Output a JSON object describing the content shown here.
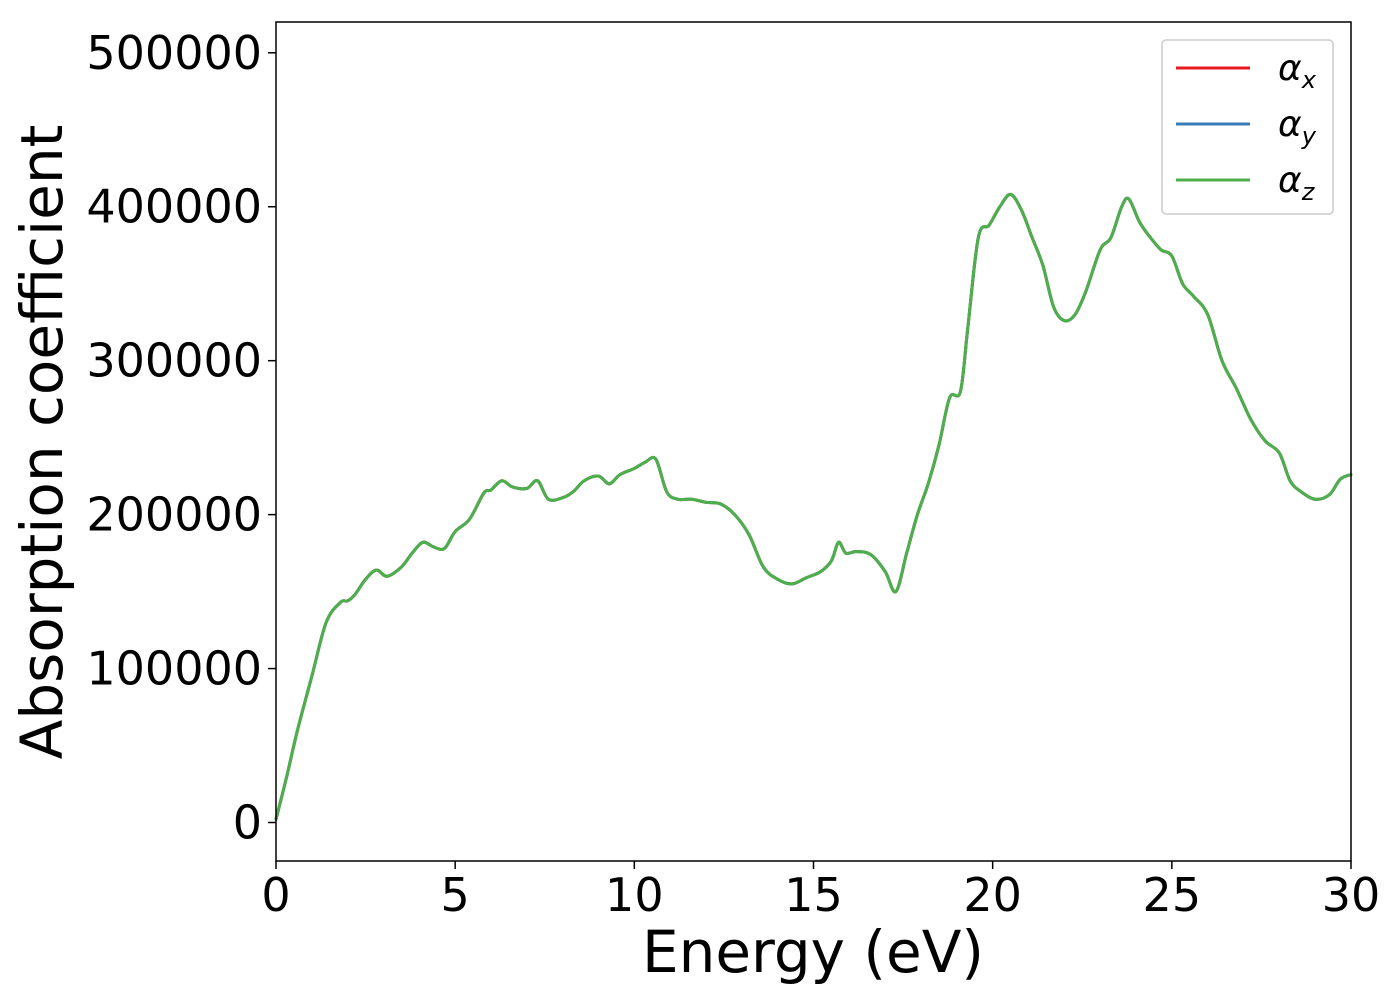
{
  "chart_data": {
    "type": "line",
    "title": "",
    "xlabel": "Energy (eV)",
    "ylabel": "Absorption coefficient",
    "xlim": [
      0,
      30
    ],
    "ylim": [
      -25000,
      520000
    ],
    "xticks": [
      "0",
      "5",
      "10",
      "15",
      "20",
      "25",
      "30"
    ],
    "yticks": [
      "0",
      "100000",
      "200000",
      "300000",
      "400000",
      "500000"
    ],
    "grid": false,
    "legend_position": "top-right",
    "legend": [
      {
        "symbol": "α",
        "sub": "x",
        "color": "#e41a1c"
      },
      {
        "symbol": "α",
        "sub": "y",
        "color": "#377eb8"
      },
      {
        "symbol": "α",
        "sub": "z",
        "color": "#4daf4a"
      }
    ],
    "x": [
      0,
      0.3,
      0.6,
      1.0,
      1.4,
      1.8,
      2.0,
      2.2,
      2.5,
      2.8,
      3.1,
      3.5,
      3.8,
      4.1,
      4.4,
      4.7,
      5.0,
      5.4,
      5.8,
      6.0,
      6.3,
      6.6,
      7.0,
      7.3,
      7.6,
      8.0,
      8.3,
      8.6,
      9.0,
      9.3,
      9.6,
      10.0,
      10.3,
      10.6,
      10.9,
      11.2,
      11.6,
      12.0,
      12.4,
      12.8,
      13.2,
      13.6,
      14.0,
      14.4,
      14.8,
      15.2,
      15.5,
      15.7,
      15.9,
      16.2,
      16.6,
      17.0,
      17.3,
      17.6,
      17.9,
      18.2,
      18.5,
      18.8,
      19.1,
      19.3,
      19.6,
      19.9,
      20.2,
      20.5,
      20.8,
      21.1,
      21.4,
      21.7,
      22.0,
      22.3,
      22.6,
      23.0,
      23.3,
      23.6,
      23.8,
      24.1,
      24.4,
      24.7,
      25.0,
      25.3,
      25.6,
      26.0,
      26.4,
      26.8,
      27.2,
      27.6,
      28.0,
      28.3,
      28.6,
      29.0,
      29.4,
      29.7,
      30.0
    ],
    "series": [
      {
        "name": "αx",
        "color": "#e41a1c",
        "values": [
          2000,
          30000,
          60000,
          95000,
          130000,
          143000,
          144000,
          148000,
          158000,
          164000,
          160000,
          166000,
          175000,
          182000,
          179000,
          178000,
          189000,
          197000,
          214000,
          216000,
          222000,
          218000,
          217000,
          222000,
          210000,
          211000,
          215000,
          222000,
          225000,
          220000,
          226000,
          230000,
          234000,
          236000,
          215000,
          210000,
          210000,
          208000,
          207000,
          200000,
          187000,
          166000,
          158000,
          155000,
          159000,
          163000,
          170000,
          182000,
          175000,
          176000,
          174000,
          163000,
          150000,
          175000,
          200000,
          220000,
          245000,
          276000,
          280000,
          320000,
          380000,
          388000,
          400000,
          408000,
          398000,
          380000,
          362000,
          335000,
          326000,
          330000,
          345000,
          372000,
          380000,
          400000,
          405000,
          390000,
          380000,
          372000,
          368000,
          350000,
          342000,
          330000,
          300000,
          282000,
          262000,
          248000,
          240000,
          222000,
          215000,
          210000,
          213000,
          223000,
          226000
        ]
      },
      {
        "name": "αy",
        "color": "#377eb8",
        "values": [
          2000,
          30000,
          60000,
          95000,
          130000,
          143000,
          144000,
          148000,
          158000,
          164000,
          160000,
          166000,
          175000,
          182000,
          179000,
          178000,
          189000,
          197000,
          214000,
          216000,
          222000,
          218000,
          217000,
          222000,
          210000,
          211000,
          215000,
          222000,
          225000,
          220000,
          226000,
          230000,
          234000,
          236000,
          215000,
          210000,
          210000,
          208000,
          207000,
          200000,
          187000,
          166000,
          158000,
          155000,
          159000,
          163000,
          170000,
          182000,
          175000,
          176000,
          174000,
          163000,
          150000,
          175000,
          200000,
          220000,
          245000,
          276000,
          280000,
          320000,
          380000,
          388000,
          400000,
          408000,
          398000,
          380000,
          362000,
          335000,
          326000,
          330000,
          345000,
          372000,
          380000,
          400000,
          405000,
          390000,
          380000,
          372000,
          368000,
          350000,
          342000,
          330000,
          300000,
          282000,
          262000,
          248000,
          240000,
          222000,
          215000,
          210000,
          213000,
          223000,
          226000
        ]
      },
      {
        "name": "αz",
        "color": "#4daf4a",
        "values": [
          2000,
          30000,
          60000,
          95000,
          130000,
          143000,
          144000,
          148000,
          158000,
          164000,
          160000,
          166000,
          175000,
          182000,
          179000,
          178000,
          189000,
          197000,
          214000,
          216000,
          222000,
          218000,
          217000,
          222000,
          210000,
          211000,
          215000,
          222000,
          225000,
          220000,
          226000,
          230000,
          234000,
          236000,
          215000,
          210000,
          210000,
          208000,
          207000,
          200000,
          187000,
          166000,
          158000,
          155000,
          159000,
          163000,
          170000,
          182000,
          175000,
          176000,
          174000,
          163000,
          150000,
          175000,
          200000,
          220000,
          245000,
          276000,
          280000,
          320000,
          380000,
          388000,
          400000,
          408000,
          398000,
          380000,
          362000,
          335000,
          326000,
          330000,
          345000,
          372000,
          380000,
          400000,
          405000,
          390000,
          380000,
          372000,
          368000,
          350000,
          342000,
          330000,
          300000,
          282000,
          262000,
          248000,
          240000,
          222000,
          215000,
          210000,
          213000,
          223000,
          226000
        ]
      }
    ]
  }
}
